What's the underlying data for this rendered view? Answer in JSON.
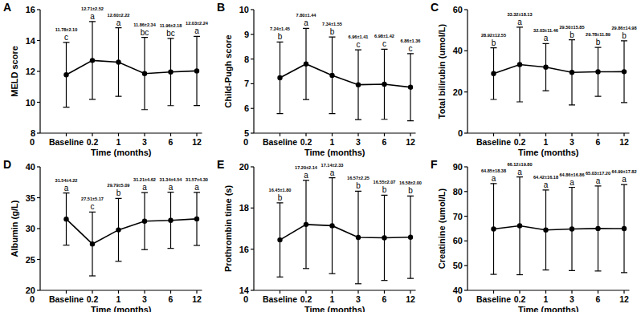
{
  "chart_data": [
    {
      "type": "line",
      "title": "A",
      "y_label": "MELD score",
      "x_label": "Time (months)",
      "x_origin_label": "0",
      "categories": [
        "Baseline",
        "0.2",
        "1",
        "3",
        "6",
        "12"
      ],
      "values": [
        11.78,
        12.71,
        12.6,
        11.86,
        11.96,
        12.03
      ],
      "errors": [
        2.1,
        2.52,
        2.22,
        2.34,
        2.18,
        2.24
      ],
      "value_labels": [
        "11.78±2.10",
        "12.71±2.52",
        "12.60±2.22",
        "11.86±2.34",
        "11.96±2.18",
        "12.03±2.24"
      ],
      "letters": [
        "c",
        "a",
        "a",
        "bc",
        "bc",
        "a"
      ],
      "ylim": [
        8,
        16
      ],
      "yticks": [
        8,
        10,
        12,
        14,
        16
      ],
      "color": "#000000",
      "marker": "circle",
      "data_labels": true
    },
    {
      "type": "line",
      "title": "B",
      "y_label": "Child-Pugh score",
      "x_label": "Time (months)",
      "x_origin_label": "0",
      "categories": [
        "Baseline",
        "0.2",
        "1",
        "3",
        "6",
        "12"
      ],
      "values": [
        7.24,
        7.8,
        7.34,
        6.96,
        6.98,
        6.86
      ],
      "errors": [
        1.45,
        1.44,
        1.55,
        1.41,
        1.42,
        1.36
      ],
      "value_labels": [
        "7.24±1.45",
        "7.80±1.44",
        "7.34±1.55",
        "6.96±1.41",
        "6.98±1.42",
        "6.86±1.36"
      ],
      "letters": [
        "b",
        "a",
        "b",
        "c",
        "c",
        "c"
      ],
      "ylim": [
        5,
        10
      ],
      "yticks": [
        5,
        6,
        7,
        8,
        9,
        10
      ],
      "color": "#000000",
      "marker": "circle",
      "data_labels": true
    },
    {
      "type": "line",
      "title": "C",
      "y_label": "Total bilirubin (umol/L)",
      "x_label": "Time (months)",
      "categories": [
        "Baseline",
        "0.2",
        "1",
        "3",
        "6",
        "12"
      ],
      "values": [
        28.92,
        33.32,
        32.03,
        29.5,
        29.78,
        29.86
      ],
      "errors": [
        12.55,
        18.13,
        11.46,
        15.85,
        11.89,
        14.98
      ],
      "value_labels": [
        "28.92±12.55",
        "33.32±18.13",
        "32.03±11.46",
        "29.50±15.85",
        "29.78±11.89",
        "29.86±14.98"
      ],
      "letters": [
        "b",
        "a",
        "a",
        "b",
        "b",
        "b"
      ],
      "ylim": [
        0,
        60
      ],
      "yticks": [
        0,
        20,
        40,
        60
      ],
      "color": "#000000",
      "marker": "circle",
      "data_labels": true
    },
    {
      "type": "line",
      "title": "D",
      "y_label": "Albumin (g/L)",
      "x_label": "Time (months)",
      "x_origin_label": "0",
      "categories": [
        "Baseline",
        "0.2",
        "1",
        "3",
        "6",
        "12"
      ],
      "values": [
        31.54,
        27.51,
        29.79,
        31.21,
        31.34,
        31.57
      ],
      "errors": [
        4.22,
        5.17,
        5.09,
        4.62,
        4.54,
        4.3
      ],
      "value_labels": [
        "31.54±4.22",
        "27.51±5.17",
        "29.79±5.09",
        "31.21±4.62",
        "31.34±4.54",
        "31.57±4.30"
      ],
      "letters": [
        "a",
        "c",
        "b",
        "a",
        "a",
        "a"
      ],
      "ylim": [
        20,
        40
      ],
      "yticks": [
        20,
        25,
        30,
        35,
        40
      ],
      "color": "#000000",
      "marker": "circle",
      "data_labels": true
    },
    {
      "type": "line",
      "title": "E",
      "y_label": "Prothrombin time (s)",
      "x_label": "Time (months)",
      "x_origin_label": "0",
      "categories": [
        "Baseline",
        "0.2",
        "1",
        "3",
        "6",
        "12"
      ],
      "values": [
        16.45,
        17.2,
        17.14,
        16.57,
        16.55,
        16.58
      ],
      "errors": [
        1.8,
        2.14,
        2.33,
        2.25,
        2.07,
        2.0
      ],
      "value_labels": [
        "16.45±1.80",
        "17.20±2.14",
        "17.14±2.33",
        "16.57±2.25",
        "16.55±2.07",
        "16.58±2.00"
      ],
      "letters": [
        "b",
        "a",
        "a",
        "b",
        "b",
        "b"
      ],
      "ylim": [
        14,
        20
      ],
      "yticks": [
        14,
        16,
        18,
        20
      ],
      "color": "#000000",
      "marker": "circle",
      "data_labels": true
    },
    {
      "type": "line",
      "title": "F",
      "y_label": "Creatinine (umol/L)",
      "x_label": "Time (months)",
      "x_origin_label": "0",
      "categories": [
        "Baseline",
        "0.2",
        "1",
        "3",
        "6",
        "12"
      ],
      "values": [
        64.85,
        66.12,
        64.42,
        64.86,
        65.03,
        64.99
      ],
      "errors": [
        18.38,
        19.8,
        16.18,
        16.86,
        17.2,
        17.82
      ],
      "value_labels": [
        "64.85±18.38",
        "66.12±19.80",
        "64.42±16.18",
        "64.86±16.86",
        "65.03±17.20",
        "64.99±17.82"
      ],
      "letters": [
        "a",
        "a",
        "a",
        "a",
        "a",
        "a"
      ],
      "ylim": [
        40,
        90
      ],
      "yticks": [
        40,
        50,
        60,
        70,
        80,
        90
      ],
      "color": "#000000",
      "marker": "circle",
      "data_labels": true
    }
  ]
}
